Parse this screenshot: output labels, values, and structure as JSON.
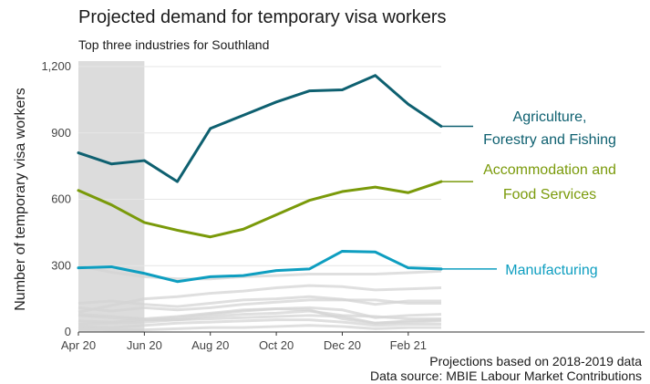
{
  "title": "Projected demand for temporary visa workers",
  "subtitle": "Top three industries for Southland",
  "notes": [
    "Projections based on 2018-2019 data",
    "Data source: MBIE Labour Market Contributions"
  ],
  "chart_data": {
    "type": "line",
    "title": "Projected demand for temporary visa workers",
    "subtitle": "Top three industries for Southland",
    "xlabel": "",
    "ylabel": "Number of temporary visa workers",
    "ylim": [
      0,
      1200
    ],
    "yticks": [
      0,
      300,
      600,
      900,
      1200
    ],
    "ytick_labels": [
      "0",
      "300",
      "600",
      "900",
      "1,200"
    ],
    "x": [
      "2020-04",
      "2020-05",
      "2020-06",
      "2020-07",
      "2020-08",
      "2020-09",
      "2020-10",
      "2020-11",
      "2020-12",
      "2021-01",
      "2021-02",
      "2021-03"
    ],
    "xtick_labels": [
      "Apr 20",
      "Jun 20",
      "Aug 20",
      "Oct 20",
      "Dec 20",
      "Feb 21"
    ],
    "xtick_positions": [
      "2020-04",
      "2020-06",
      "2020-08",
      "2020-10",
      "2020-12",
      "2021-02"
    ],
    "shaded_range": [
      "2020-04",
      "2020-06"
    ],
    "grid": "horizontal",
    "series": [
      {
        "name": "Agriculture, Forestry and Fishing",
        "color": "#0e6070",
        "values": [
          810,
          760,
          775,
          680,
          920,
          980,
          1040,
          1090,
          1095,
          1160,
          1030,
          930
        ]
      },
      {
        "name": "Accommodation and Food Services",
        "color": "#7a9a0a",
        "values": [
          640,
          575,
          495,
          460,
          430,
          465,
          530,
          595,
          635,
          655,
          630,
          680
        ]
      },
      {
        "name": "Manufacturing",
        "color": "#0e9ec0",
        "values": [
          290,
          295,
          265,
          228,
          250,
          255,
          278,
          285,
          365,
          362,
          290,
          285
        ]
      }
    ],
    "background_series": [
      {
        "values": [
          300,
          270,
          250,
          240,
          240,
          250,
          255,
          262,
          262,
          262,
          268,
          275
        ]
      },
      {
        "values": [
          90,
          120,
          150,
          160,
          175,
          185,
          200,
          210,
          205,
          190,
          195,
          200
        ]
      },
      {
        "values": [
          130,
          140,
          125,
          115,
          130,
          145,
          150,
          160,
          148,
          125,
          140,
          140
        ]
      },
      {
        "values": [
          110,
          95,
          110,
          100,
          110,
          125,
          135,
          145,
          145,
          145,
          130,
          130
        ]
      },
      {
        "values": [
          80,
          70,
          60,
          70,
          85,
          100,
          105,
          110,
          100,
          65,
          75,
          80
        ]
      },
      {
        "values": [
          75,
          65,
          55,
          55,
          70,
          80,
          85,
          95,
          75,
          70,
          60,
          60
        ]
      },
      {
        "values": [
          50,
          45,
          55,
          65,
          80,
          95,
          105,
          100,
          60,
          40,
          50,
          55
        ]
      },
      {
        "values": [
          35,
          40,
          45,
          55,
          60,
          65,
          70,
          75,
          70,
          40,
          45,
          50
        ]
      },
      {
        "values": [
          25,
          20,
          30,
          40,
          45,
          50,
          55,
          55,
          45,
          30,
          35,
          35
        ]
      },
      {
        "values": [
          15,
          10,
          10,
          15,
          20,
          20,
          25,
          30,
          25,
          15,
          20,
          20
        ]
      }
    ],
    "labels": [
      {
        "series": "Agriculture, Forestry and Fishing",
        "lines": [
          "Agriculture,",
          "Forestry and Fishing"
        ]
      },
      {
        "series": "Accommodation and Food Services",
        "lines": [
          "Accommodation and",
          "Food Services"
        ]
      },
      {
        "series": "Manufacturing",
        "lines": [
          "Manufacturing"
        ]
      }
    ]
  }
}
